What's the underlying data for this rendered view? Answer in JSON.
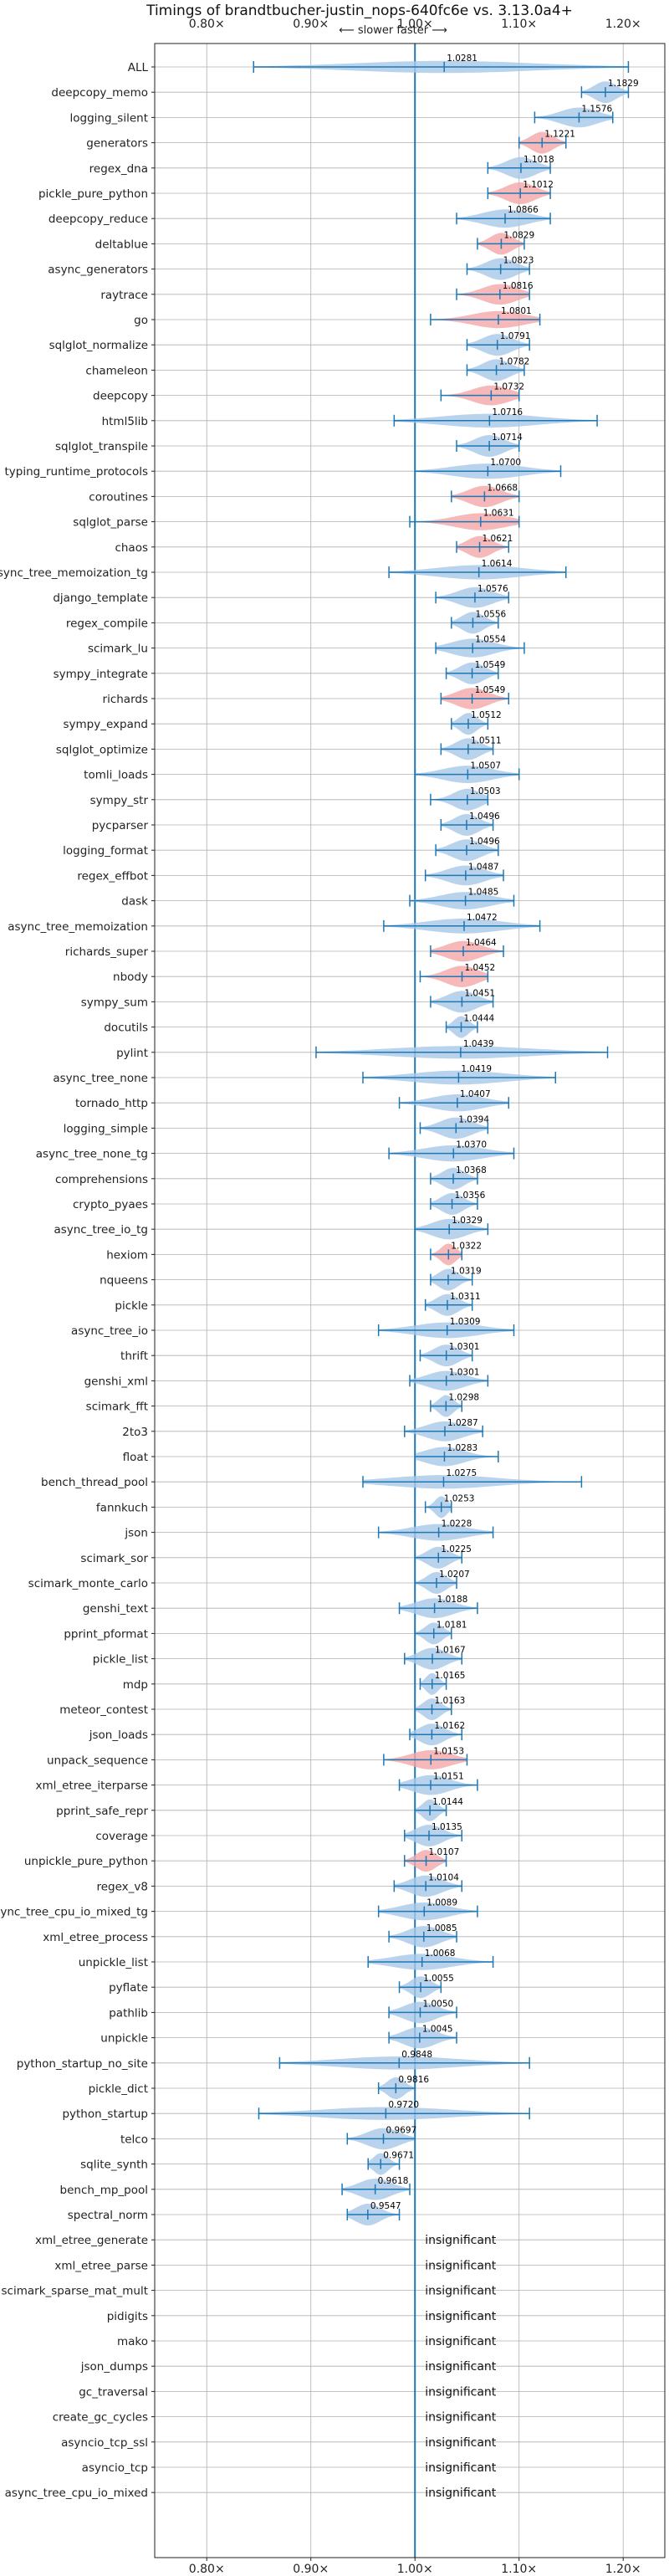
{
  "chart_data": {
    "type": "violin",
    "title": "Timings of brandtbucher-justin_nops-640fc6e vs. 3.13.0a4+",
    "subtitle": "⟵ slower   faster ⟶",
    "orientation": "horizontal",
    "xlim": [
      0.75,
      1.24
    ],
    "x_ticks": [
      0.8,
      0.9,
      1.0,
      1.1,
      1.2
    ],
    "x_tick_labels": [
      "0.80×",
      "0.90×",
      "1.00×",
      "1.10×",
      "1.20×"
    ],
    "reference_line": 1.0,
    "grid": true,
    "colors": {
      "faster": "#a8c8e8",
      "slower": "#f4a6a6",
      "whisker": "#1f77b4",
      "refline": "#1f77b4",
      "grid": "#b0b0b0"
    },
    "insignificant_label": "insignificant",
    "benchmarks": [
      {
        "name": "ALL",
        "value": 1.0281,
        "label": "1.0281",
        "lo": 0.845,
        "hi": 1.205,
        "sig": "faster"
      },
      {
        "name": "deepcopy_memo",
        "value": 1.1829,
        "label": "1.1829",
        "lo": 1.16,
        "hi": 1.205,
        "sig": "faster"
      },
      {
        "name": "logging_silent",
        "value": 1.1576,
        "label": "1.1576",
        "lo": 1.115,
        "hi": 1.19,
        "sig": "faster"
      },
      {
        "name": "generators",
        "value": 1.1221,
        "label": "1.1221",
        "lo": 1.1,
        "hi": 1.145,
        "sig": "slower"
      },
      {
        "name": "regex_dna",
        "value": 1.1018,
        "label": "1.1018",
        "lo": 1.07,
        "hi": 1.13,
        "sig": "faster"
      },
      {
        "name": "pickle_pure_python",
        "value": 1.1012,
        "label": "1.1012",
        "lo": 1.07,
        "hi": 1.13,
        "sig": "slower"
      },
      {
        "name": "deepcopy_reduce",
        "value": 1.0866,
        "label": "1.0866",
        "lo": 1.04,
        "hi": 1.13,
        "sig": "faster"
      },
      {
        "name": "deltablue",
        "value": 1.0829,
        "label": "1.0829",
        "lo": 1.06,
        "hi": 1.105,
        "sig": "slower"
      },
      {
        "name": "async_generators",
        "value": 1.0823,
        "label": "1.0823",
        "lo": 1.05,
        "hi": 1.11,
        "sig": "faster"
      },
      {
        "name": "raytrace",
        "value": 1.0816,
        "label": "1.0816",
        "lo": 1.04,
        "hi": 1.11,
        "sig": "slower"
      },
      {
        "name": "go",
        "value": 1.0801,
        "label": "1.0801",
        "lo": 1.015,
        "hi": 1.12,
        "sig": "slower"
      },
      {
        "name": "sqlglot_normalize",
        "value": 1.0791,
        "label": "1.0791",
        "lo": 1.05,
        "hi": 1.11,
        "sig": "faster"
      },
      {
        "name": "chameleon",
        "value": 1.0782,
        "label": "1.0782",
        "lo": 1.05,
        "hi": 1.105,
        "sig": "faster"
      },
      {
        "name": "deepcopy",
        "value": 1.0732,
        "label": "1.0732",
        "lo": 1.025,
        "hi": 1.1,
        "sig": "slower"
      },
      {
        "name": "html5lib",
        "value": 1.0716,
        "label": "1.0716",
        "lo": 0.98,
        "hi": 1.175,
        "sig": "faster"
      },
      {
        "name": "sqlglot_transpile",
        "value": 1.0714,
        "label": "1.0714",
        "lo": 1.04,
        "hi": 1.1,
        "sig": "faster"
      },
      {
        "name": "typing_runtime_protocols",
        "value": 1.07,
        "label": "1.0700",
        "lo": 1.0,
        "hi": 1.14,
        "sig": "faster"
      },
      {
        "name": "coroutines",
        "value": 1.0668,
        "label": "1.0668",
        "lo": 1.035,
        "hi": 1.1,
        "sig": "slower"
      },
      {
        "name": "sqlglot_parse",
        "value": 1.0631,
        "label": "1.0631",
        "lo": 0.995,
        "hi": 1.1,
        "sig": "slower"
      },
      {
        "name": "chaos",
        "value": 1.0621,
        "label": "1.0621",
        "lo": 1.04,
        "hi": 1.09,
        "sig": "slower"
      },
      {
        "name": "async_tree_memoization_tg",
        "value": 1.0614,
        "label": "1.0614",
        "lo": 0.975,
        "hi": 1.145,
        "sig": "faster"
      },
      {
        "name": "django_template",
        "value": 1.0576,
        "label": "1.0576",
        "lo": 1.02,
        "hi": 1.09,
        "sig": "faster"
      },
      {
        "name": "regex_compile",
        "value": 1.0556,
        "label": "1.0556",
        "lo": 1.035,
        "hi": 1.08,
        "sig": "faster"
      },
      {
        "name": "scimark_lu",
        "value": 1.0554,
        "label": "1.0554",
        "lo": 1.02,
        "hi": 1.105,
        "sig": "faster"
      },
      {
        "name": "sympy_integrate",
        "value": 1.0549,
        "label": "1.0549",
        "lo": 1.03,
        "hi": 1.08,
        "sig": "faster"
      },
      {
        "name": "richards",
        "value": 1.0549,
        "label": "1.0549",
        "lo": 1.025,
        "hi": 1.09,
        "sig": "slower"
      },
      {
        "name": "sympy_expand",
        "value": 1.0512,
        "label": "1.0512",
        "lo": 1.035,
        "hi": 1.07,
        "sig": "faster"
      },
      {
        "name": "sqlglot_optimize",
        "value": 1.0511,
        "label": "1.0511",
        "lo": 1.025,
        "hi": 1.075,
        "sig": "faster"
      },
      {
        "name": "tomli_loads",
        "value": 1.0507,
        "label": "1.0507",
        "lo": 1.0,
        "hi": 1.1,
        "sig": "faster"
      },
      {
        "name": "sympy_str",
        "value": 1.0503,
        "label": "1.0503",
        "lo": 1.015,
        "hi": 1.07,
        "sig": "faster"
      },
      {
        "name": "pycparser",
        "value": 1.0496,
        "label": "1.0496",
        "lo": 1.025,
        "hi": 1.075,
        "sig": "faster"
      },
      {
        "name": "logging_format",
        "value": 1.0496,
        "label": "1.0496",
        "lo": 1.02,
        "hi": 1.08,
        "sig": "faster"
      },
      {
        "name": "regex_effbot",
        "value": 1.0487,
        "label": "1.0487",
        "lo": 1.01,
        "hi": 1.085,
        "sig": "faster"
      },
      {
        "name": "dask",
        "value": 1.0485,
        "label": "1.0485",
        "lo": 0.995,
        "hi": 1.095,
        "sig": "faster"
      },
      {
        "name": "async_tree_memoization",
        "value": 1.0472,
        "label": "1.0472",
        "lo": 0.97,
        "hi": 1.12,
        "sig": "faster"
      },
      {
        "name": "richards_super",
        "value": 1.0464,
        "label": "1.0464",
        "lo": 1.015,
        "hi": 1.085,
        "sig": "slower"
      },
      {
        "name": "nbody",
        "value": 1.0452,
        "label": "1.0452",
        "lo": 1.005,
        "hi": 1.07,
        "sig": "slower"
      },
      {
        "name": "sympy_sum",
        "value": 1.0451,
        "label": "1.0451",
        "lo": 1.015,
        "hi": 1.075,
        "sig": "faster"
      },
      {
        "name": "docutils",
        "value": 1.0444,
        "label": "1.0444",
        "lo": 1.03,
        "hi": 1.06,
        "sig": "faster"
      },
      {
        "name": "pylint",
        "value": 1.0439,
        "label": "1.0439",
        "lo": 0.905,
        "hi": 1.185,
        "sig": "faster"
      },
      {
        "name": "async_tree_none",
        "value": 1.0419,
        "label": "1.0419",
        "lo": 0.95,
        "hi": 1.135,
        "sig": "faster"
      },
      {
        "name": "tornado_http",
        "value": 1.0407,
        "label": "1.0407",
        "lo": 0.985,
        "hi": 1.09,
        "sig": "faster"
      },
      {
        "name": "logging_simple",
        "value": 1.0394,
        "label": "1.0394",
        "lo": 1.005,
        "hi": 1.07,
        "sig": "faster"
      },
      {
        "name": "async_tree_none_tg",
        "value": 1.037,
        "label": "1.0370",
        "lo": 0.975,
        "hi": 1.095,
        "sig": "faster"
      },
      {
        "name": "comprehensions",
        "value": 1.0368,
        "label": "1.0368",
        "lo": 1.015,
        "hi": 1.06,
        "sig": "faster"
      },
      {
        "name": "crypto_pyaes",
        "value": 1.0356,
        "label": "1.0356",
        "lo": 1.015,
        "hi": 1.06,
        "sig": "faster"
      },
      {
        "name": "async_tree_io_tg",
        "value": 1.0329,
        "label": "1.0329",
        "lo": 1.0,
        "hi": 1.07,
        "sig": "faster"
      },
      {
        "name": "hexiom",
        "value": 1.0322,
        "label": "1.0322",
        "lo": 1.015,
        "hi": 1.045,
        "sig": "slower"
      },
      {
        "name": "nqueens",
        "value": 1.0319,
        "label": "1.0319",
        "lo": 1.015,
        "hi": 1.055,
        "sig": "faster"
      },
      {
        "name": "pickle",
        "value": 1.0311,
        "label": "1.0311",
        "lo": 1.01,
        "hi": 1.055,
        "sig": "faster"
      },
      {
        "name": "async_tree_io",
        "value": 1.0309,
        "label": "1.0309",
        "lo": 0.965,
        "hi": 1.095,
        "sig": "faster"
      },
      {
        "name": "thrift",
        "value": 1.0301,
        "label": "1.0301",
        "lo": 1.005,
        "hi": 1.055,
        "sig": "faster"
      },
      {
        "name": "genshi_xml",
        "value": 1.0301,
        "label": "1.0301",
        "lo": 0.995,
        "hi": 1.07,
        "sig": "faster"
      },
      {
        "name": "scimark_fft",
        "value": 1.0298,
        "label": "1.0298",
        "lo": 1.015,
        "hi": 1.045,
        "sig": "faster"
      },
      {
        "name": "2to3",
        "value": 1.0287,
        "label": "1.0287",
        "lo": 0.99,
        "hi": 1.065,
        "sig": "faster"
      },
      {
        "name": "float",
        "value": 1.0283,
        "label": "1.0283",
        "lo": 1.0,
        "hi": 1.08,
        "sig": "faster"
      },
      {
        "name": "bench_thread_pool",
        "value": 1.0275,
        "label": "1.0275",
        "lo": 0.95,
        "hi": 1.16,
        "sig": "faster"
      },
      {
        "name": "fannkuch",
        "value": 1.0253,
        "label": "1.0253",
        "lo": 1.01,
        "hi": 1.035,
        "sig": "faster"
      },
      {
        "name": "json",
        "value": 1.0228,
        "label": "1.0228",
        "lo": 0.965,
        "hi": 1.075,
        "sig": "faster"
      },
      {
        "name": "scimark_sor",
        "value": 1.0225,
        "label": "1.0225",
        "lo": 1.0,
        "hi": 1.045,
        "sig": "faster"
      },
      {
        "name": "scimark_monte_carlo",
        "value": 1.0207,
        "label": "1.0207",
        "lo": 1.0,
        "hi": 1.04,
        "sig": "faster"
      },
      {
        "name": "genshi_text",
        "value": 1.0188,
        "label": "1.0188",
        "lo": 0.985,
        "hi": 1.06,
        "sig": "faster"
      },
      {
        "name": "pprint_pformat",
        "value": 1.0181,
        "label": "1.0181",
        "lo": 1.0,
        "hi": 1.035,
        "sig": "faster"
      },
      {
        "name": "pickle_list",
        "value": 1.0167,
        "label": "1.0167",
        "lo": 0.99,
        "hi": 1.045,
        "sig": "faster"
      },
      {
        "name": "mdp",
        "value": 1.0165,
        "label": "1.0165",
        "lo": 1.005,
        "hi": 1.03,
        "sig": "faster"
      },
      {
        "name": "meteor_contest",
        "value": 1.0163,
        "label": "1.0163",
        "lo": 1.0,
        "hi": 1.035,
        "sig": "faster"
      },
      {
        "name": "json_loads",
        "value": 1.0162,
        "label": "1.0162",
        "lo": 0.995,
        "hi": 1.045,
        "sig": "faster"
      },
      {
        "name": "unpack_sequence",
        "value": 1.0153,
        "label": "1.0153",
        "lo": 0.97,
        "hi": 1.05,
        "sig": "slower"
      },
      {
        "name": "xml_etree_iterparse",
        "value": 1.0151,
        "label": "1.0151",
        "lo": 0.985,
        "hi": 1.06,
        "sig": "faster"
      },
      {
        "name": "pprint_safe_repr",
        "value": 1.0144,
        "label": "1.0144",
        "lo": 1.0,
        "hi": 1.03,
        "sig": "faster"
      },
      {
        "name": "coverage",
        "value": 1.0135,
        "label": "1.0135",
        "lo": 0.99,
        "hi": 1.045,
        "sig": "faster"
      },
      {
        "name": "unpickle_pure_python",
        "value": 1.0107,
        "label": "1.0107",
        "lo": 0.99,
        "hi": 1.03,
        "sig": "slower"
      },
      {
        "name": "regex_v8",
        "value": 1.0104,
        "label": "1.0104",
        "lo": 0.98,
        "hi": 1.045,
        "sig": "faster"
      },
      {
        "name": "async_tree_cpu_io_mixed_tg",
        "value": 1.0089,
        "label": "1.0089",
        "lo": 0.965,
        "hi": 1.06,
        "sig": "faster"
      },
      {
        "name": "xml_etree_process",
        "value": 1.0085,
        "label": "1.0085",
        "lo": 0.975,
        "hi": 1.04,
        "sig": "faster"
      },
      {
        "name": "unpickle_list",
        "value": 1.0068,
        "label": "1.0068",
        "lo": 0.955,
        "hi": 1.075,
        "sig": "faster"
      },
      {
        "name": "pyflate",
        "value": 1.0055,
        "label": "1.0055",
        "lo": 0.985,
        "hi": 1.025,
        "sig": "faster"
      },
      {
        "name": "pathlib",
        "value": 1.005,
        "label": "1.0050",
        "lo": 0.975,
        "hi": 1.04,
        "sig": "faster"
      },
      {
        "name": "unpickle",
        "value": 1.0045,
        "label": "1.0045",
        "lo": 0.975,
        "hi": 1.04,
        "sig": "faster"
      },
      {
        "name": "python_startup_no_site",
        "value": 0.9848,
        "label": "0.9848",
        "lo": 0.87,
        "hi": 1.11,
        "sig": "faster"
      },
      {
        "name": "pickle_dict",
        "value": 0.9816,
        "label": "0.9816",
        "lo": 0.965,
        "hi": 1.0,
        "sig": "faster"
      },
      {
        "name": "python_startup",
        "value": 0.972,
        "label": "0.9720",
        "lo": 0.85,
        "hi": 1.11,
        "sig": "faster"
      },
      {
        "name": "telco",
        "value": 0.9697,
        "label": "0.9697",
        "lo": 0.935,
        "hi": 1.0,
        "sig": "faster"
      },
      {
        "name": "sqlite_synth",
        "value": 0.9671,
        "label": "0.9671",
        "lo": 0.955,
        "hi": 0.985,
        "sig": "faster"
      },
      {
        "name": "bench_mp_pool",
        "value": 0.9618,
        "label": "0.9618",
        "lo": 0.93,
        "hi": 0.995,
        "sig": "faster"
      },
      {
        "name": "spectral_norm",
        "value": 0.9547,
        "label": "0.9547",
        "lo": 0.935,
        "hi": 0.985,
        "sig": "faster"
      },
      {
        "name": "xml_etree_generate",
        "insignificant": true
      },
      {
        "name": "xml_etree_parse",
        "insignificant": true
      },
      {
        "name": "scimark_sparse_mat_mult",
        "insignificant": true
      },
      {
        "name": "pidigits",
        "insignificant": true
      },
      {
        "name": "mako",
        "insignificant": true
      },
      {
        "name": "json_dumps",
        "insignificant": true
      },
      {
        "name": "gc_traversal",
        "insignificant": true
      },
      {
        "name": "create_gc_cycles",
        "insignificant": true
      },
      {
        "name": "asyncio_tcp_ssl",
        "insignificant": true
      },
      {
        "name": "asyncio_tcp",
        "insignificant": true
      },
      {
        "name": "async_tree_cpu_io_mixed",
        "insignificant": true
      }
    ]
  }
}
